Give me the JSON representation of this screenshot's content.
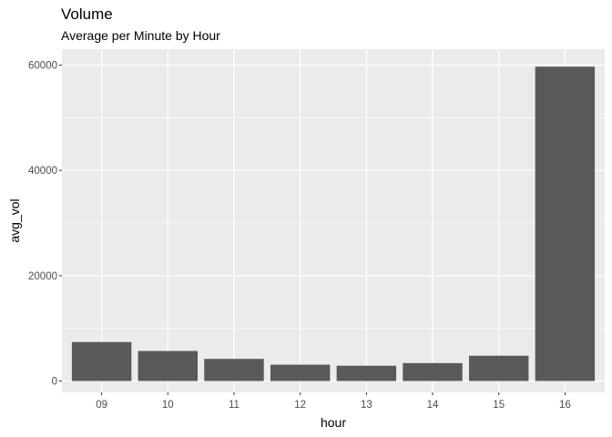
{
  "chart_data": {
    "type": "bar",
    "title": "Volume",
    "subtitle": "Average per Minute by Hour",
    "xlabel": "hour",
    "ylabel": "avg_vol",
    "categories": [
      "09",
      "10",
      "11",
      "12",
      "13",
      "14",
      "15",
      "16"
    ],
    "values": [
      7400,
      5700,
      4200,
      3100,
      2900,
      3400,
      4800,
      59700
    ],
    "ylim": [
      0,
      60000
    ],
    "yticks": [
      0,
      20000,
      40000,
      60000
    ],
    "ytick_labels": [
      "0",
      "20000",
      "40000",
      "60000"
    ],
    "grid": true,
    "legend": "none"
  },
  "colors": {
    "panel_background": "#ebebeb",
    "grid_major": "#ffffff",
    "bar_fill": "#595959"
  }
}
